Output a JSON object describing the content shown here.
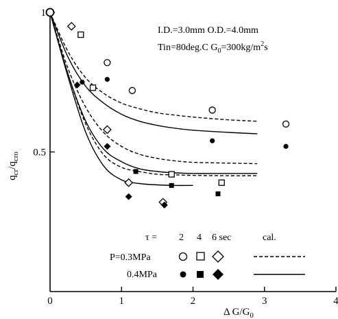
{
  "chart_data": {
    "type": "scatter",
    "title": "",
    "xlabel_main": "Δ G/G",
    "xlabel_sub": "0",
    "ylabel_main": "q",
    "ylabel_sub1": "cr",
    "ylabel_mid": "/q",
    "ylabel_sub2": "cro",
    "xlim": [
      0,
      4
    ],
    "ylim": [
      0,
      1
    ],
    "x_ticks": [
      {
        "value": 0,
        "label": "0"
      },
      {
        "value": 1,
        "label": "1"
      },
      {
        "value": 2,
        "label": "2"
      },
      {
        "value": 3,
        "label": "3"
      },
      {
        "value": 4,
        "label": "4"
      }
    ],
    "y_ticks": [
      {
        "value": 0.5,
        "label": "0.5"
      },
      {
        "value": 1.0,
        "label": "1"
      }
    ],
    "conditions_line1": "I.D.=3.0mm O.D.=4.0mm",
    "conditions_line2_prefix": "Tin=80deg.C G",
    "conditions_line2_sub": "0",
    "conditions_line2_mid": "=300kg/m",
    "conditions_line2_sup": "2",
    "conditions_line2_suffix": "s",
    "legend": {
      "tau_label": "τ =",
      "tau_values": [
        "2",
        "4",
        "6 sec"
      ],
      "cal_label": "cal.",
      "rows": [
        {
          "label": "P=0.3MPa",
          "fill": "open",
          "line": "dashed"
        },
        {
          "label": "0.4MPa",
          "fill": "filled",
          "line": "solid"
        }
      ]
    },
    "origin_point": {
      "x": 0,
      "y": 1.0
    },
    "series": [
      {
        "tau": 2,
        "P": 0.3,
        "marker": "circle",
        "fill": "open",
        "points": [
          [
            0.8,
            0.82
          ],
          [
            1.15,
            0.72
          ],
          [
            2.27,
            0.65
          ],
          [
            3.3,
            0.6
          ]
        ]
      },
      {
        "tau": 4,
        "P": 0.3,
        "marker": "square",
        "fill": "open",
        "points": [
          [
            0.43,
            0.92
          ],
          [
            0.6,
            0.73
          ],
          [
            1.7,
            0.42
          ],
          [
            2.4,
            0.39
          ]
        ]
      },
      {
        "tau": 6,
        "P": 0.3,
        "marker": "diamond",
        "fill": "open",
        "points": [
          [
            0.3,
            0.95
          ],
          [
            0.8,
            0.58
          ],
          [
            1.1,
            0.39
          ],
          [
            1.58,
            0.32
          ]
        ]
      },
      {
        "tau": 2,
        "P": 0.4,
        "marker": "circle",
        "fill": "filled",
        "points": [
          [
            0.45,
            0.75
          ],
          [
            0.8,
            0.76
          ],
          [
            2.27,
            0.54
          ],
          [
            3.3,
            0.52
          ]
        ]
      },
      {
        "tau": 4,
        "P": 0.4,
        "marker": "square",
        "fill": "filled",
        "points": [
          [
            1.2,
            0.43
          ],
          [
            1.7,
            0.38
          ],
          [
            2.35,
            0.35
          ]
        ]
      },
      {
        "tau": 6,
        "P": 0.4,
        "marker": "diamond",
        "fill": "filled",
        "points": [
          [
            0.38,
            0.74
          ],
          [
            0.8,
            0.52
          ],
          [
            1.1,
            0.34
          ],
          [
            1.6,
            0.31
          ]
        ]
      }
    ],
    "calc_curves": [
      {
        "tau": 2,
        "P": 0.3,
        "style": "dashed",
        "points": [
          [
            0,
            1.0
          ],
          [
            0.25,
            0.86
          ],
          [
            0.5,
            0.765
          ],
          [
            0.75,
            0.71
          ],
          [
            1.0,
            0.675
          ],
          [
            1.25,
            0.655
          ],
          [
            1.5,
            0.64
          ],
          [
            1.75,
            0.632
          ],
          [
            2.0,
            0.625
          ],
          [
            2.5,
            0.615
          ],
          [
            2.9,
            0.61
          ]
        ]
      },
      {
        "tau": 2,
        "P": 0.4,
        "style": "solid",
        "points": [
          [
            0,
            1.0
          ],
          [
            0.25,
            0.84
          ],
          [
            0.5,
            0.735
          ],
          [
            0.75,
            0.675
          ],
          [
            1.0,
            0.635
          ],
          [
            1.25,
            0.61
          ],
          [
            1.5,
            0.595
          ],
          [
            1.75,
            0.585
          ],
          [
            2.0,
            0.578
          ],
          [
            2.5,
            0.57
          ],
          [
            2.9,
            0.565
          ]
        ]
      },
      {
        "tau": 4,
        "P": 0.3,
        "style": "dashed",
        "points": [
          [
            0,
            1.0
          ],
          [
            0.25,
            0.8
          ],
          [
            0.5,
            0.66
          ],
          [
            0.75,
            0.57
          ],
          [
            1.0,
            0.52
          ],
          [
            1.25,
            0.492
          ],
          [
            1.5,
            0.477
          ],
          [
            1.75,
            0.468
          ],
          [
            2.0,
            0.463
          ],
          [
            2.5,
            0.46
          ],
          [
            2.9,
            0.458
          ]
        ]
      },
      {
        "tau": 4,
        "P": 0.4,
        "style": "solid",
        "points": [
          [
            0,
            1.0
          ],
          [
            0.25,
            0.78
          ],
          [
            0.5,
            0.61
          ],
          [
            0.75,
            0.51
          ],
          [
            1.0,
            0.465
          ],
          [
            1.25,
            0.44
          ],
          [
            1.5,
            0.43
          ],
          [
            1.75,
            0.425
          ],
          [
            2.0,
            0.423
          ],
          [
            2.5,
            0.423
          ],
          [
            2.9,
            0.423
          ]
        ]
      },
      {
        "tau": 6,
        "P": 0.3,
        "style": "dashed",
        "points": [
          [
            0,
            1.0
          ],
          [
            0.25,
            0.78
          ],
          [
            0.5,
            0.6
          ],
          [
            0.75,
            0.49
          ],
          [
            1.0,
            0.445
          ],
          [
            1.25,
            0.43
          ],
          [
            1.5,
            0.42
          ],
          [
            1.75,
            0.418
          ],
          [
            2.0,
            0.416
          ],
          [
            2.5,
            0.415
          ],
          [
            2.9,
            0.415
          ]
        ]
      },
      {
        "tau": 6,
        "P": 0.4,
        "style": "solid",
        "points": [
          [
            0,
            1.0
          ],
          [
            0.25,
            0.77
          ],
          [
            0.5,
            0.57
          ],
          [
            0.75,
            0.45
          ],
          [
            1.0,
            0.4
          ],
          [
            1.25,
            0.387
          ],
          [
            1.5,
            0.382
          ],
          [
            1.75,
            0.38
          ],
          [
            2.0,
            0.38
          ]
        ]
      }
    ]
  }
}
